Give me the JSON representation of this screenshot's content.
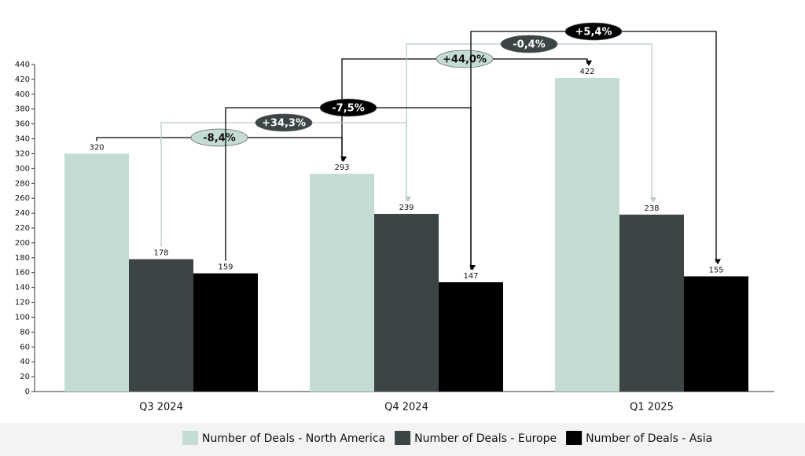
{
  "chart_data": {
    "type": "bar",
    "categories": [
      "Q3 2024",
      "Q4 2024",
      "Q1 2025"
    ],
    "series": [
      {
        "name": "Number of Deals - North America",
        "color": "#c5dcd3",
        "values": [
          320,
          293,
          422
        ],
        "changes": [
          "-8,4%",
          "+44,0%"
        ]
      },
      {
        "name": "Number of Deals - Europe",
        "color": "#3b4545",
        "values": [
          178,
          239,
          238
        ],
        "changes": [
          "+34,3%",
          "-0,4%"
        ]
      },
      {
        "name": "Number of Deals - Asia",
        "color": "#000000",
        "values": [
          159,
          147,
          155
        ],
        "changes": [
          "-7,5%",
          "+5,4%"
        ]
      }
    ],
    "ylim": [
      0,
      440
    ],
    "yticks": [
      0,
      20,
      40,
      60,
      80,
      100,
      120,
      140,
      160,
      180,
      200,
      220,
      240,
      260,
      280,
      300,
      320,
      340,
      360,
      380,
      400,
      420,
      440
    ],
    "legend": "bottom"
  }
}
